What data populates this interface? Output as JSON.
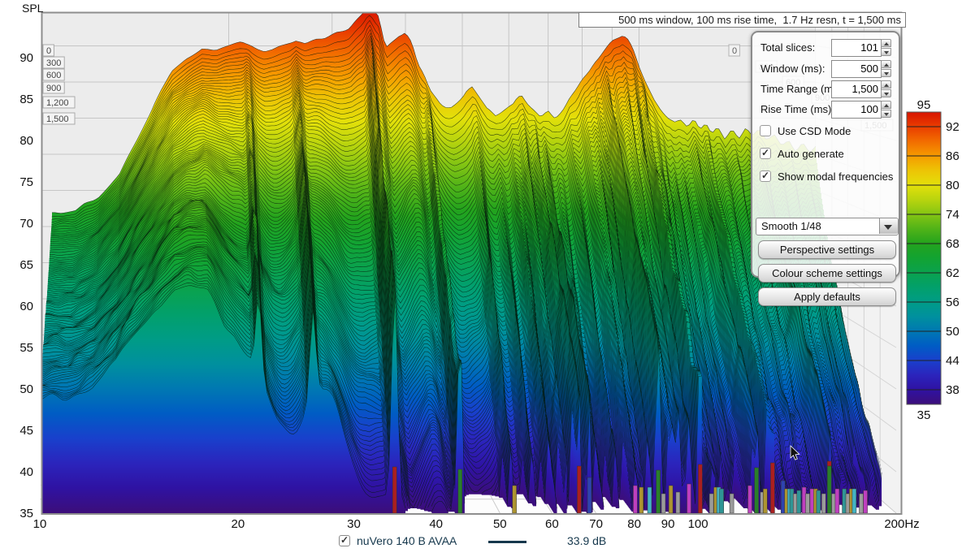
{
  "header": {
    "spl_label": "SPL",
    "title": "500 ms window, 100 ms rise time,  1.7 Hz resn, t = 1,500 ms"
  },
  "panel": {
    "fields": [
      {
        "label": "Total slices:",
        "value": "101"
      },
      {
        "label": "Window (ms):",
        "value": "500"
      },
      {
        "label": "Time Range (ms):",
        "value": "1,500"
      },
      {
        "label": "Rise Time (ms):",
        "value": "100"
      }
    ],
    "checkboxes": [
      {
        "label": "Use CSD Mode",
        "checked": false
      },
      {
        "label": "Auto generate",
        "checked": true
      },
      {
        "label": "Show modal frequencies",
        "checked": true
      }
    ],
    "dropdown": {
      "value": "Smooth 1/48"
    },
    "buttons": [
      "Perspective settings",
      "Colour scheme settings",
      "Apply defaults"
    ]
  },
  "trace_legend": {
    "name": "nuVero 140 B AVAA",
    "checked": true,
    "value": "33.9 dB",
    "color": "#16384d"
  },
  "colors": {
    "plot_bg": "#ececec",
    "floor": "#fdfdfd",
    "right_wall": "#f2f2f2",
    "grid": "#c6c6c6",
    "floor_grid": "#cccccc",
    "frame": "#8e8e8e",
    "slice_stroke": "rgba(5,25,12,0.78)",
    "trace": "#16384d",
    "label_box_bg": "#f4f4f4",
    "label_box_border": "#aaaaaa"
  },
  "chart_data": {
    "type": "area",
    "variant": "3d-spectral-decay-waterfall",
    "title": "500 ms window, 100 ms rise time,  1.7 Hz resn, t = 1,500 ms",
    "xlabel": "Hz",
    "ylabel": "SPL",
    "freq_range": [
      10,
      200
    ],
    "spl_range": [
      35,
      95
    ],
    "time_range_ms": [
      0,
      1500
    ],
    "slices": 101,
    "floor_db": 35,
    "spl_ticks": [
      90,
      85,
      80,
      75,
      70,
      65,
      60,
      55,
      50,
      45,
      40,
      35
    ],
    "freq_ticks": [
      [
        10,
        "10"
      ],
      [
        20,
        "20"
      ],
      [
        30,
        "30"
      ],
      [
        40,
        "40"
      ],
      [
        50,
        "50"
      ],
      [
        60,
        "60"
      ],
      [
        70,
        "70"
      ],
      [
        80,
        "80"
      ],
      [
        90,
        "90"
      ],
      [
        100,
        "100"
      ],
      [
        200,
        "200Hz"
      ]
    ],
    "time_tick_labels": [
      "0",
      "300",
      "600",
      "900",
      "1,200",
      "1,500"
    ],
    "legend_bar": {
      "top": "95",
      "bottom": "35",
      "ticks": [
        92,
        86,
        80,
        74,
        68,
        62,
        56,
        50,
        44,
        38
      ]
    },
    "palette": [
      [
        95,
        "#d81400"
      ],
      [
        92,
        "#e93d00"
      ],
      [
        89,
        "#f26c00"
      ],
      [
        86,
        "#f59b00"
      ],
      [
        83,
        "#edc405"
      ],
      [
        80,
        "#e3e00a"
      ],
      [
        77,
        "#b8d40e"
      ],
      [
        74,
        "#84c513"
      ],
      [
        71,
        "#50b318"
      ],
      [
        68,
        "#23a31d"
      ],
      [
        65,
        "#12a332"
      ],
      [
        62,
        "#0aa24e"
      ],
      [
        59,
        "#02a06b"
      ],
      [
        56,
        "#009c86"
      ],
      [
        53,
        "#00909e"
      ],
      [
        50,
        "#0078b2"
      ],
      [
        47,
        "#005cc4"
      ],
      [
        44,
        "#1940cc"
      ],
      [
        41,
        "#2b24bc"
      ],
      [
        38,
        "#2f12a2"
      ],
      [
        35,
        "#3c0e79"
      ]
    ],
    "base_response": [
      [
        10,
        67
      ],
      [
        11,
        67.5
      ],
      [
        12,
        69
      ],
      [
        13,
        72
      ],
      [
        14,
        77
      ],
      [
        15,
        82
      ],
      [
        16,
        86
      ],
      [
        17,
        88
      ],
      [
        18,
        89.5
      ],
      [
        19,
        89.5
      ],
      [
        20,
        90
      ],
      [
        21,
        90.5
      ],
      [
        22,
        90
      ],
      [
        23,
        89.5
      ],
      [
        24,
        90
      ],
      [
        25,
        90.5
      ],
      [
        26,
        91
      ],
      [
        27,
        90.5
      ],
      [
        28,
        91
      ],
      [
        29,
        91.5
      ],
      [
        30,
        92
      ],
      [
        31,
        92.5
      ],
      [
        32,
        93
      ],
      [
        33,
        94
      ],
      [
        34,
        94.6
      ],
      [
        35,
        94.8
      ],
      [
        36,
        93.8
      ],
      [
        37,
        89.5
      ],
      [
        38,
        90.5
      ],
      [
        39,
        91.5
      ],
      [
        40,
        92
      ],
      [
        41,
        90.5
      ],
      [
        42,
        87.5
      ],
      [
        43,
        86
      ],
      [
        44,
        84
      ],
      [
        45,
        83
      ],
      [
        46,
        82
      ],
      [
        47,
        81.5
      ],
      [
        48,
        81.5
      ],
      [
        49,
        82
      ],
      [
        50,
        82.5
      ],
      [
        51,
        83.5
      ],
      [
        52,
        84
      ],
      [
        53,
        83
      ],
      [
        54,
        82
      ],
      [
        55,
        81
      ],
      [
        56,
        80.5
      ],
      [
        57,
        80
      ],
      [
        58,
        80.5
      ],
      [
        59,
        81
      ],
      [
        60,
        81.5
      ],
      [
        61,
        82
      ],
      [
        62,
        83
      ],
      [
        63,
        83.5
      ],
      [
        64,
        82.5
      ],
      [
        65,
        81.5
      ],
      [
        66,
        81
      ],
      [
        67,
        80.5
      ],
      [
        68,
        80
      ],
      [
        69,
        80.5
      ],
      [
        70,
        81
      ],
      [
        72,
        80
      ],
      [
        74,
        81
      ],
      [
        76,
        82.5
      ],
      [
        78,
        83.5
      ],
      [
        80,
        85
      ],
      [
        82,
        86
      ],
      [
        84,
        87.5
      ],
      [
        86,
        88.5
      ],
      [
        88,
        89.5
      ],
      [
        90,
        90.5
      ],
      [
        92,
        91
      ],
      [
        94,
        91.3
      ],
      [
        96,
        90.5
      ],
      [
        98,
        89
      ],
      [
        100,
        87
      ],
      [
        103,
        84.5
      ],
      [
        106,
        82.5
      ],
      [
        109,
        81
      ],
      [
        112,
        80
      ],
      [
        115,
        79.5
      ],
      [
        118,
        80
      ],
      [
        121,
        79
      ],
      [
        124,
        80
      ],
      [
        127,
        78.5
      ],
      [
        130,
        79.5
      ],
      [
        133,
        78
      ],
      [
        136,
        79
      ],
      [
        140,
        77.5
      ],
      [
        144,
        79
      ],
      [
        148,
        77.5
      ],
      [
        152,
        78.5
      ],
      [
        156,
        77
      ],
      [
        160,
        78
      ],
      [
        165,
        76.5
      ],
      [
        170,
        77.5
      ],
      [
        175,
        76
      ],
      [
        180,
        77
      ],
      [
        185,
        75.5
      ],
      [
        190,
        76.5
      ],
      [
        195,
        75
      ],
      [
        200,
        76
      ]
    ],
    "strong_modes": [
      34.6,
      43.5,
      66,
      68.4,
      87,
      100.8,
      122.7,
      129.8,
      158.3
    ],
    "medium_modes": [
      21.5,
      26,
      52.6,
      57,
      60.5,
      63,
      72,
      76,
      80.3,
      82,
      84.4,
      90.9,
      93.2,
      96.9,
      104.8,
      106.4,
      108.6,
      112.5,
      116,
      119.9,
      125.2,
      126.5,
      134.6,
      136.3,
      138.8,
      142.3,
      144.9,
      149,
      150.9,
      152.4,
      155.2,
      160.7,
      162.7,
      166.8,
      171,
      172.7,
      177,
      179.6,
      185,
      190,
      195
    ],
    "decay": {
      "dmax_lo": 19,
      "dmax_hi": 55,
      "mode_retention": 0.45,
      "exponent": 0.8,
      "mode_width": 0.014
    },
    "mode_colors": {
      "red": "#ab1f1f",
      "green": "#2a7f2a",
      "olive": "#ad9430",
      "blue": "#2e43b0",
      "magenta": "#bf3fbf",
      "cyan": "#43b4c4",
      "teal": "#2f9595",
      "gray": "#9b9b9b"
    },
    "modal_frequency_bars": [
      [
        34.6,
        "red",
        57
      ],
      [
        43.5,
        "green",
        54
      ],
      [
        52.6,
        "olive",
        34
      ],
      [
        66,
        "red",
        58
      ],
      [
        68.4,
        "blue",
        44
      ],
      [
        80.3,
        "magenta",
        34
      ],
      [
        82,
        "olive",
        32
      ],
      [
        84.4,
        "cyan",
        32
      ],
      [
        87,
        "green",
        53
      ],
      [
        88.6,
        "gray",
        24
      ],
      [
        90.9,
        "olive",
        34
      ],
      [
        93.2,
        "gray",
        26
      ],
      [
        96.9,
        "magenta",
        36
      ],
      [
        100.8,
        "red",
        60
      ],
      [
        104.8,
        "gray",
        24
      ],
      [
        106.4,
        "olive",
        32
      ],
      [
        107.5,
        "cyan",
        32
      ],
      [
        108.6,
        "teal",
        30
      ],
      [
        112.5,
        "gray",
        24
      ],
      [
        119.9,
        "magenta",
        34
      ],
      [
        122.7,
        "green",
        56
      ],
      [
        125.2,
        "gray",
        26
      ],
      [
        126.5,
        "olive",
        30
      ],
      [
        129.8,
        "red",
        62
      ],
      [
        134.6,
        "blue",
        40
      ],
      [
        136.3,
        "olive",
        30
      ],
      [
        137.7,
        "cyan",
        30
      ],
      [
        138.8,
        "teal",
        30
      ],
      [
        140.5,
        "gray",
        24
      ],
      [
        142.3,
        "teal",
        28
      ],
      [
        144.9,
        "magenta",
        32
      ],
      [
        146.7,
        "gray",
        24
      ],
      [
        149,
        "magenta",
        30
      ],
      [
        150.9,
        "olive",
        30
      ],
      [
        152.4,
        "teal",
        28
      ],
      [
        155.2,
        "gray",
        24
      ],
      [
        158.3,
        "red",
        64
      ],
      [
        158.3,
        "green",
        58
      ],
      [
        160.7,
        "gray",
        24
      ],
      [
        162.7,
        "magenta",
        30
      ],
      [
        166.8,
        "teal",
        30
      ],
      [
        168.9,
        "gray",
        24
      ],
      [
        171,
        "olive",
        30
      ],
      [
        172.7,
        "cyan",
        30
      ],
      [
        177,
        "gray",
        24
      ],
      [
        179.6,
        "magenta",
        28
      ]
    ]
  }
}
